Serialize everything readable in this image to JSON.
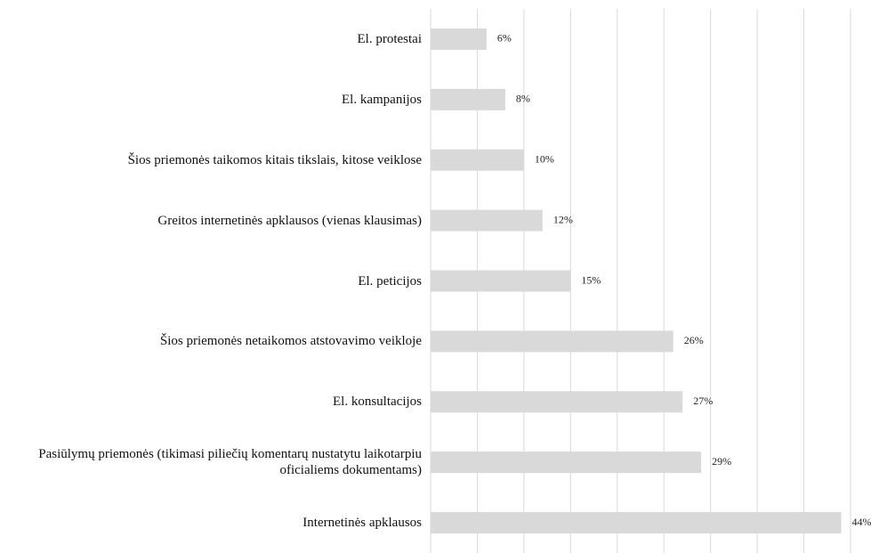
{
  "chart_data": {
    "type": "bar",
    "orientation": "horizontal",
    "categories": [
      "El. protestai",
      "El. kampanijos",
      "Šios priemonės taikomos kitais tikslais, kitose veiklose",
      "Greitos internetinės apklausos (vienas klausimas)",
      "El. peticijos",
      "Šios priemonės netaikomos atstovavimo veikloje",
      "El. konsultacijos",
      "Pasiūlymų priemonės (tikimasi piliečių komentarų nustatytu laikotarpiu oficialiems dokumentams)",
      "Internetinės apklausos"
    ],
    "values": [
      6,
      8,
      10,
      12,
      15,
      26,
      27,
      29,
      44
    ],
    "value_labels": [
      "6%",
      "8%",
      "10%",
      "12%",
      "15%",
      "26%",
      "27%",
      "29%",
      "44%"
    ],
    "color": "#d9d9d9",
    "xlim": [
      0,
      45
    ],
    "xticks": [
      0,
      5,
      10,
      15,
      20,
      25,
      30,
      35,
      40,
      45
    ],
    "grid": true
  }
}
